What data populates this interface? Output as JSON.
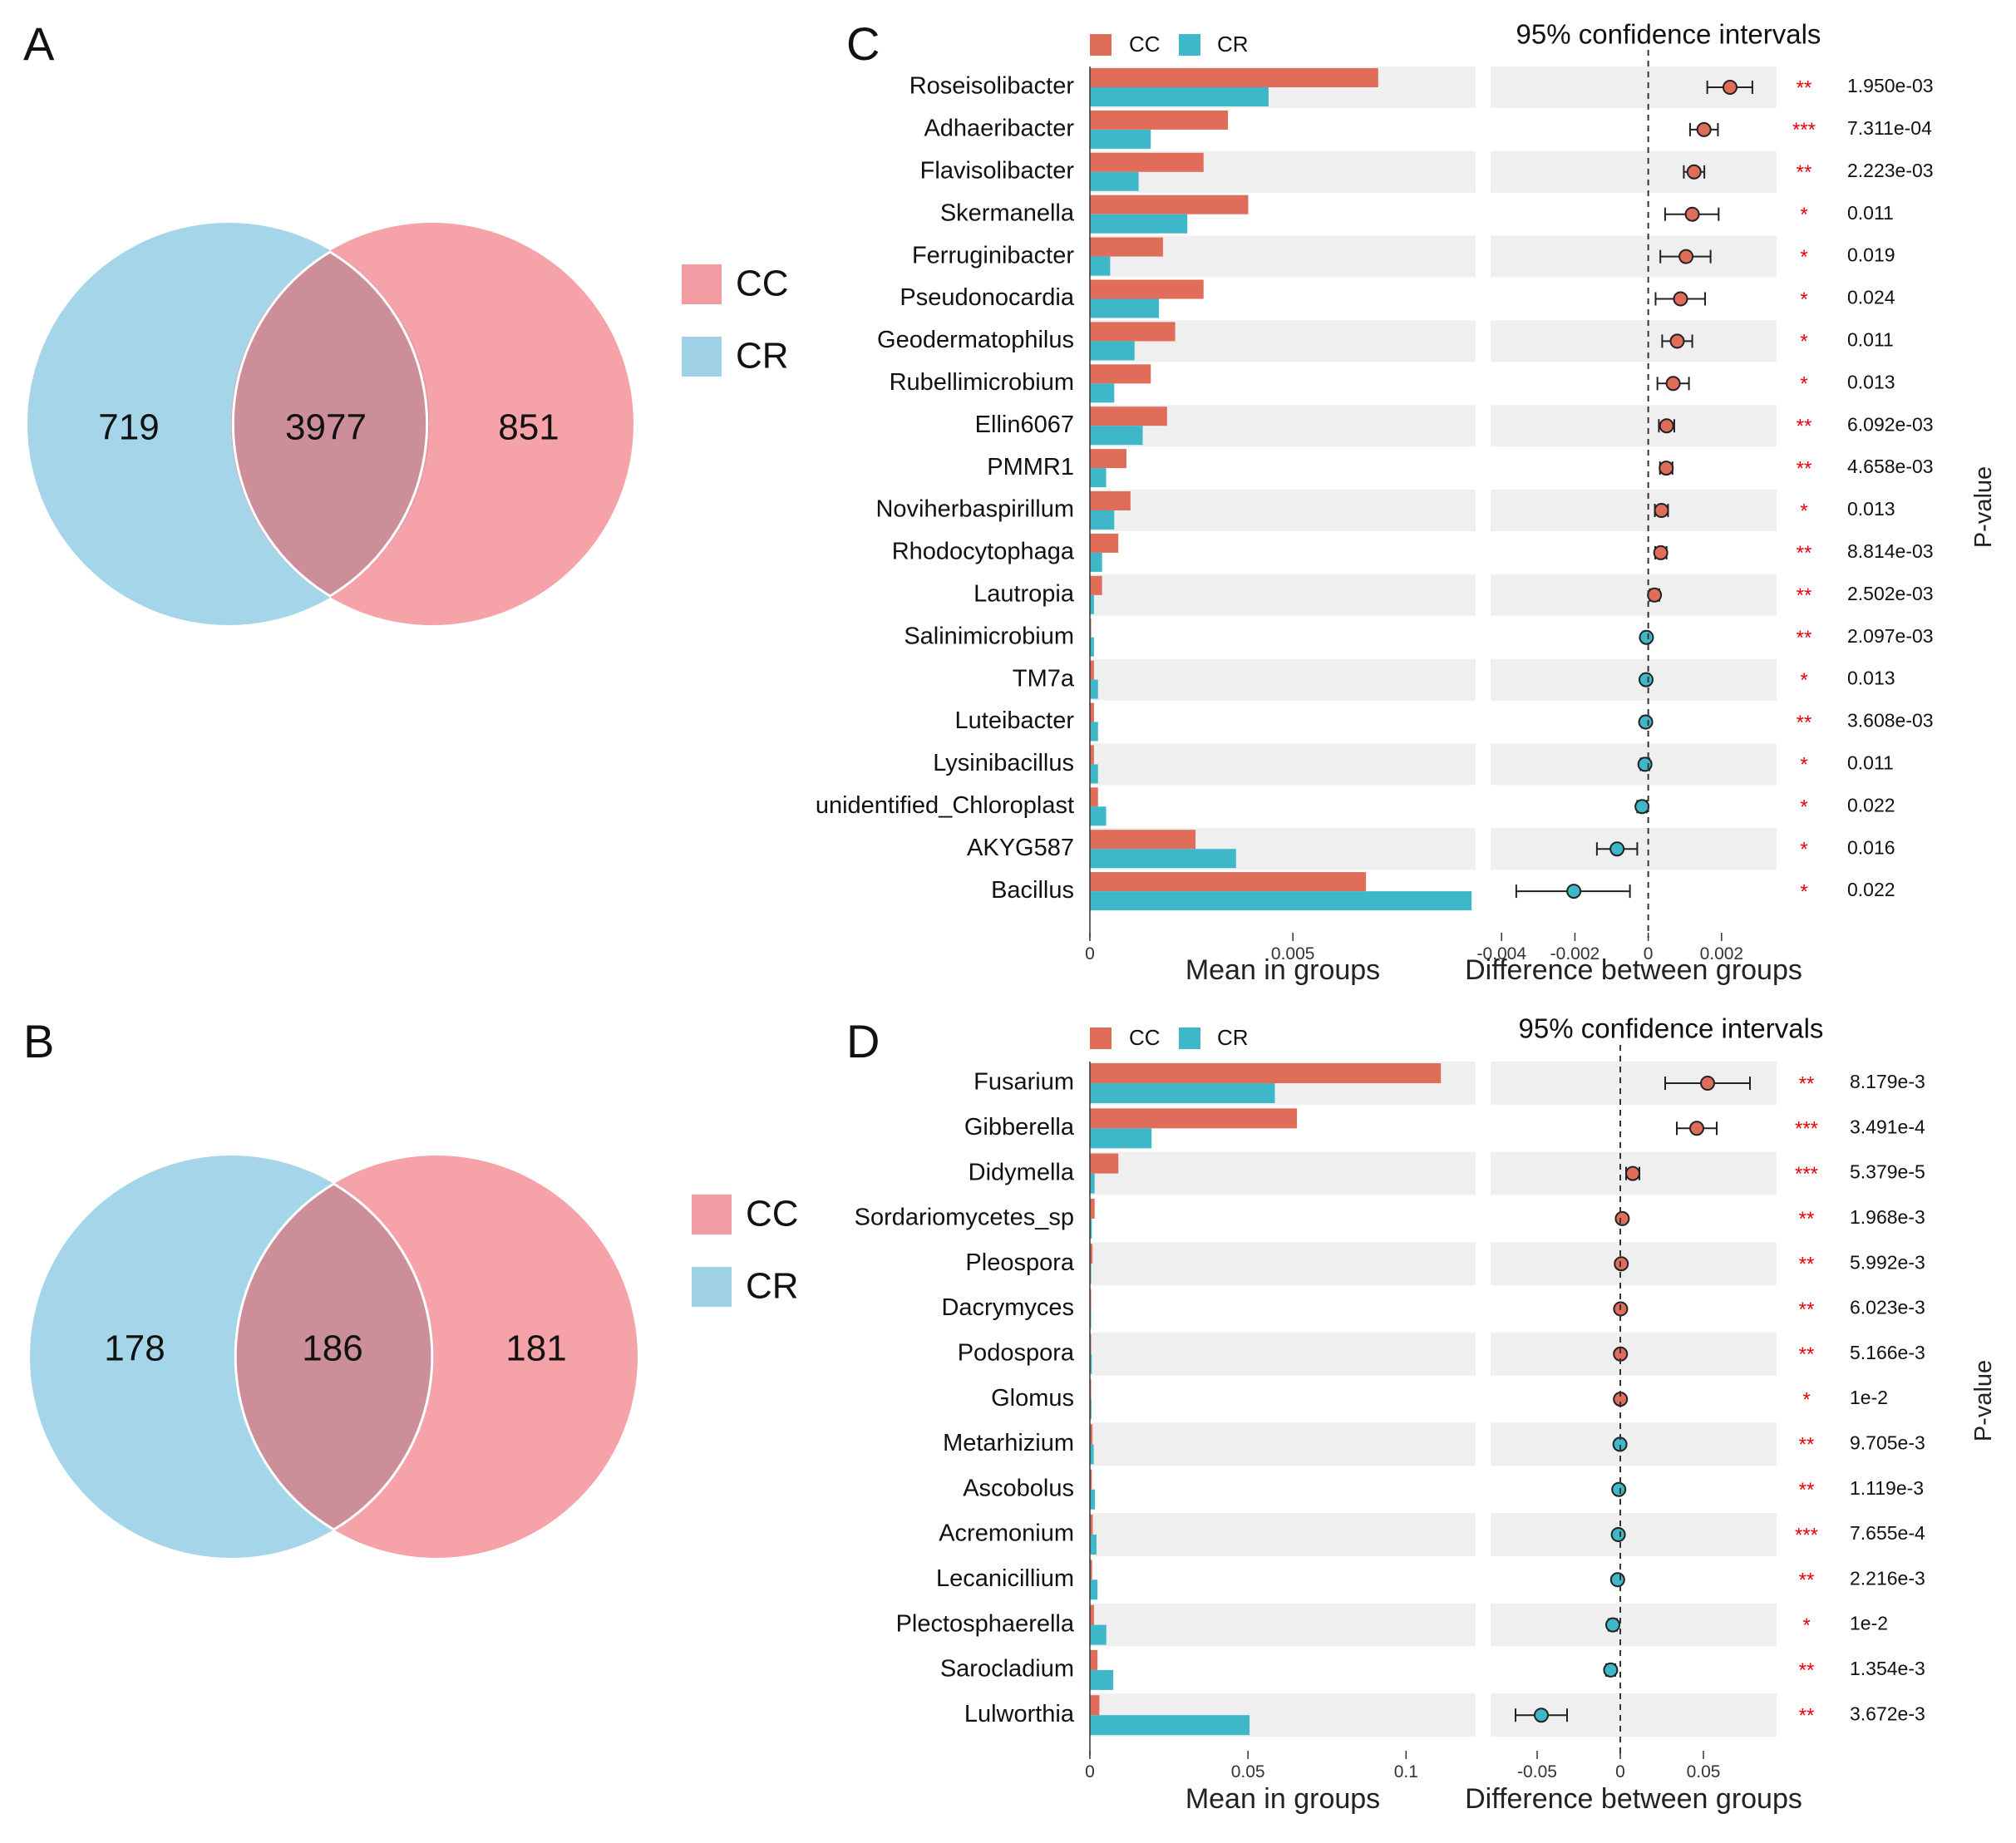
{
  "colors": {
    "cc_bar": "#e06c5a",
    "cr_bar": "#3eb7c8",
    "cc_venn": "#f28b93",
    "cr_venn": "#8ecae3",
    "overlap": "#cc8f9a",
    "band": "#efefef",
    "star": "#e8000b",
    "text": "#111111"
  },
  "panels": {
    "A": "A",
    "B": "B",
    "C": "C",
    "D": "D"
  },
  "venn": [
    {
      "left_label": "CR",
      "right_label": "CC",
      "left_only": "719",
      "shared": "3977",
      "right_only": "851",
      "legend": [
        {
          "name": "CC"
        },
        {
          "name": "CR"
        }
      ]
    },
    {
      "left_label": "CR",
      "right_label": "CC",
      "left_only": "178",
      "shared": "186",
      "right_only": "181",
      "legend": [
        {
          "name": "CC"
        },
        {
          "name": "CR"
        }
      ]
    }
  ],
  "chart_data": [
    {
      "type": "bar",
      "panel": "C",
      "title": "95% confidence intervals",
      "legend": [
        "CC",
        "CR"
      ],
      "xlabel_left": "Mean in groups",
      "xlabel_right": "Difference between groups",
      "ylabel_right": "P-value",
      "mean_ticks": [
        "0",
        "0.005"
      ],
      "mean_tick_values": [
        0,
        0.005
      ],
      "mean_xlim": [
        0,
        0.0095
      ],
      "diff_ticks": [
        "-0.004",
        "-0.002",
        "0",
        "0.002"
      ],
      "diff_tick_values": [
        -0.004,
        -0.002,
        0,
        0.002
      ],
      "diff_xlim": [
        -0.0043,
        0.0035
      ],
      "categories": [
        "Roseisolibacter",
        "Adhaeribacter",
        "Flavisolibacter",
        "Skermanella",
        "Ferruginibacter",
        "Pseudonocardia",
        "Geodermatophilus",
        "Rubellimicrobium",
        "Ellin6067",
        "PMMR1",
        "Noviherbaspirillum",
        "Rhodocytophaga",
        "Lautropia",
        "Salinimicrobium",
        "TM7a",
        "Luteibacter",
        "Lysinibacillus",
        "unidentified_Chloroplast",
        "AKYG587",
        "Bacillus"
      ],
      "series": [
        {
          "name": "CC",
          "values": [
            0.0071,
            0.0034,
            0.0028,
            0.0039,
            0.0018,
            0.0028,
            0.0021,
            0.0015,
            0.0019,
            0.0009,
            0.001,
            0.0007,
            0.0003,
            2e-05,
            0.0001,
            0.0001,
            0.0001,
            0.0002,
            0.0026,
            0.0068
          ]
        },
        {
          "name": "CR",
          "values": [
            0.0044,
            0.0015,
            0.0012,
            0.0024,
            0.0005,
            0.0017,
            0.0011,
            0.0006,
            0.0013,
            0.0004,
            0.0006,
            0.0003,
            0.0001,
            0.0001,
            0.0002,
            0.0002,
            0.0002,
            0.0004,
            0.0036,
            0.0094
          ]
        }
      ],
      "diff": [
        0.00223,
        0.00152,
        0.00125,
        0.0012,
        0.00103,
        0.00088,
        0.00079,
        0.00068,
        0.0005,
        0.00049,
        0.00036,
        0.00034,
        0.00017,
        -5e-05,
        -6e-05,
        -7e-05,
        -9e-05,
        -0.00017,
        -0.00085,
        -0.00203
      ],
      "ci_low": [
        0.00161,
        0.00114,
        0.00097,
        0.00046,
        0.00033,
        0.0002,
        0.00038,
        0.00025,
        0.00029,
        0.00032,
        0.00018,
        0.00019,
        4e-05,
        -0.00014,
        -0.00015,
        -0.00017,
        -0.00021,
        -0.0003,
        -0.0014,
        -0.0036
      ],
      "ci_high": [
        0.00284,
        0.0019,
        0.00153,
        0.00192,
        0.0017,
        0.00155,
        0.0012,
        0.00111,
        0.00071,
        0.00066,
        0.00054,
        0.0005,
        0.0003,
        4e-05,
        3e-05,
        2e-05,
        3e-05,
        -4e-05,
        -0.0003,
        -0.0005
      ],
      "stars": [
        "**",
        "***",
        "**",
        "*",
        "*",
        "*",
        "*",
        "*",
        "**",
        "**",
        "*",
        "**",
        "**",
        "**",
        "*",
        "**",
        "*",
        "*",
        "*",
        "*"
      ],
      "pvalues": [
        "1.950e-03",
        "7.311e-04",
        "2.223e-03",
        "0.011",
        "0.019",
        "0.024",
        "0.011",
        "0.013",
        "6.092e-03",
        "4.658e-03",
        "0.013",
        "8.814e-03",
        "2.502e-03",
        "2.097e-03",
        "0.013",
        "3.608e-03",
        "0.011",
        "0.022",
        "0.016",
        "0.022"
      ]
    },
    {
      "type": "bar",
      "panel": "D",
      "title": "95% confidence intervals",
      "legend": [
        "CC",
        "CR"
      ],
      "xlabel_left": "Mean in groups",
      "xlabel_right": "Difference between groups",
      "ylabel_right": "P-value",
      "mean_ticks": [
        "0",
        "0.05",
        "0.1"
      ],
      "mean_tick_values": [
        0,
        0.05,
        0.1
      ],
      "mean_xlim": [
        0,
        0.122
      ],
      "diff_ticks": [
        "-0.05",
        "0",
        "0.05"
      ],
      "diff_tick_values": [
        -0.05,
        0,
        0.05
      ],
      "diff_xlim": [
        -0.078,
        0.094
      ],
      "categories": [
        "Fusarium",
        "Gibberella",
        "Didymella",
        "Sordariomycetes_sp",
        "Pleospora",
        "Dacrymyces",
        "Podospora",
        "Glomus",
        "Metarhizium",
        "Ascobolus",
        "Acremonium",
        "Lecanicillium",
        "Plectosphaerella",
        "Sarocladium",
        "Lulworthia"
      ],
      "series": [
        {
          "name": "CC",
          "values": [
            0.111,
            0.0655,
            0.009,
            0.0015,
            0.0008,
            0.0003,
            0.0004,
            0.0003,
            0.0008,
            0.0006,
            0.0009,
            0.0007,
            0.0013,
            0.0024,
            0.003
          ]
        },
        {
          "name": "CR",
          "values": [
            0.0585,
            0.0195,
            0.0015,
            0.0006,
            0.0004,
            0.0003,
            0.0006,
            0.0005,
            0.0012,
            0.0016,
            0.0021,
            0.0024,
            0.0052,
            0.0074,
            0.0505
          ]
        }
      ],
      "diff": [
        0.0525,
        0.046,
        0.0075,
        0.0012,
        0.0006,
        0.0002,
        0.0001,
        0.0001,
        -0.0002,
        -0.0009,
        -0.0012,
        -0.0016,
        -0.0045,
        -0.0058,
        -0.0475
      ],
      "ci_low": [
        0.027,
        0.034,
        0.0035,
        -0.0005,
        -0.0008,
        -0.0008,
        -0.0008,
        -0.0008,
        -0.0012,
        -0.0022,
        -0.0025,
        -0.003,
        -0.007,
        -0.0085,
        -0.063
      ],
      "ci_high": [
        0.078,
        0.058,
        0.0115,
        0.0029,
        0.002,
        0.0012,
        0.001,
        0.001,
        0.0008,
        0.0004,
        0.0001,
        -0.0002,
        -0.002,
        -0.003,
        -0.032
      ],
      "stars": [
        "**",
        "***",
        "***",
        "**",
        "**",
        "**",
        "**",
        "*",
        "**",
        "**",
        "***",
        "**",
        "*",
        "**",
        "**"
      ],
      "pvalues": [
        "8.179e-3",
        "3.491e-4",
        "5.379e-5",
        "1.968e-3",
        "5.992e-3",
        "6.023e-3",
        "5.166e-3",
        "1e-2",
        "9.705e-3",
        "1.119e-3",
        "7.655e-4",
        "2.216e-3",
        "1e-2",
        "1.354e-3",
        "3.672e-3"
      ]
    }
  ]
}
